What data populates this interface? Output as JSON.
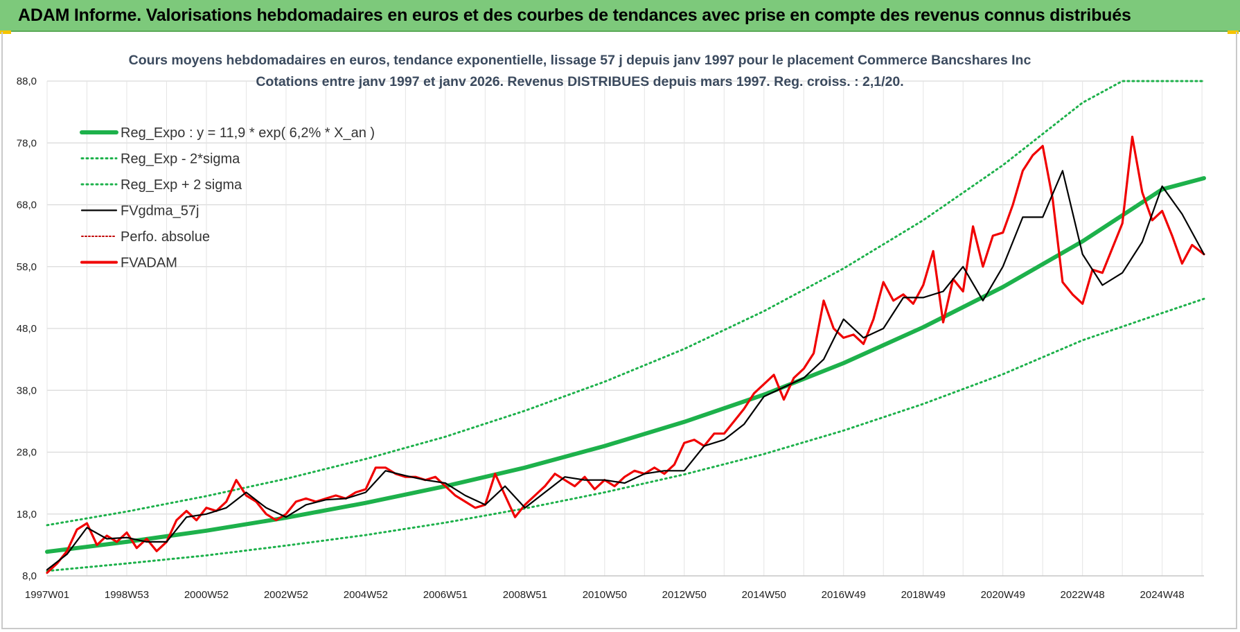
{
  "banner": {
    "title": "ADAM Informe. Valorisations hebdomadaires en euros et des courbes de tendances avec prise en compte des revenus connus distribués"
  },
  "colors": {
    "banner": "#7dc97b",
    "reg_expo": "#1db14b",
    "fv_gdma": "#000000",
    "fv_adam": "#f00000",
    "perfo": "#c00000"
  },
  "chart_data": {
    "type": "line",
    "title": "Cours moyens hebdomadaires en euros, tendance exponentielle, lissage 57 j depuis janv 1997  pour le placement Commerce Bancshares Inc",
    "subtitle": "Cotations entre janv 1997 et janv 2026. Revenus DISTRIBUES depuis mars 1997.  Reg. croiss. : 2,1/20.",
    "xlabel": "",
    "ylabel": "",
    "x_range": [
      1997.0,
      2026.05
    ],
    "ylim": [
      8.0,
      88.0
    ],
    "y_ticks": [
      8.0,
      18.0,
      28.0,
      38.0,
      48.0,
      58.0,
      68.0,
      78.0,
      88.0
    ],
    "y_tick_labels": [
      "8,0",
      "18,0",
      "28,0",
      "38,0",
      "48,0",
      "58,0",
      "68,0",
      "78,0",
      "88,0"
    ],
    "x_ticks": [
      {
        "label": "1997W01",
        "x": 1997.0
      },
      {
        "label": "1998W53",
        "x": 1999.0
      },
      {
        "label": "2000W52",
        "x": 2001.0
      },
      {
        "label": "2002W52",
        "x": 2003.0
      },
      {
        "label": "2004W52",
        "x": 2005.0
      },
      {
        "label": "2006W51",
        "x": 2007.0
      },
      {
        "label": "2008W51",
        "x": 2009.0
      },
      {
        "label": "2010W50",
        "x": 2011.0
      },
      {
        "label": "2012W50",
        "x": 2013.0
      },
      {
        "label": "2014W50",
        "x": 2015.0
      },
      {
        "label": "2016W49",
        "x": 2017.0
      },
      {
        "label": "2018W49",
        "x": 2019.0
      },
      {
        "label": "2020W49",
        "x": 2021.0
      },
      {
        "label": "2022W48",
        "x": 2023.0
      },
      {
        "label": "2024W48",
        "x": 2025.0
      }
    ],
    "grid": true,
    "legend_position": "top-left",
    "series": [
      {
        "name": "Reg_Expo : y = 11,9 * exp( 6,2% *  X_an )",
        "style": "solid-thick",
        "x": [
          1997.0,
          1999.0,
          2001.0,
          2003.0,
          2005.0,
          2007.0,
          2009.0,
          2011.0,
          2013.0,
          2015.0,
          2017.0,
          2019.0,
          2021.0,
          2023.0,
          2025.0,
          2026.05
        ],
        "y": [
          11.9,
          13.5,
          15.3,
          17.4,
          19.8,
          22.5,
          25.5,
          29.0,
          32.9,
          37.3,
          42.4,
          48.2,
          54.7,
          62.1,
          70.5,
          72.3
        ]
      },
      {
        "name": "Reg_Exp - 2*sigma",
        "style": "dotted",
        "x": [
          1997.0,
          1999.0,
          2001.0,
          2003.0,
          2005.0,
          2007.0,
          2009.0,
          2011.0,
          2013.0,
          2015.0,
          2017.0,
          2019.0,
          2021.0,
          2023.0,
          2025.0,
          2026.05
        ],
        "y": [
          8.8,
          10.0,
          11.3,
          12.9,
          14.6,
          16.6,
          18.9,
          21.5,
          24.4,
          27.7,
          31.5,
          35.8,
          40.6,
          46.1,
          50.5,
          52.8
        ]
      },
      {
        "name": "Reg_Exp + 2 sigma",
        "style": "dotted",
        "x": [
          1997.0,
          1999.0,
          2001.0,
          2003.0,
          2005.0,
          2007.0,
          2009.0,
          2011.0,
          2013.0,
          2015.0,
          2017.0,
          2019.0,
          2021.0,
          2023.0,
          2024.0,
          2026.05
        ],
        "y": [
          16.2,
          18.4,
          20.9,
          23.7,
          26.9,
          30.5,
          34.7,
          39.4,
          44.7,
          50.8,
          57.7,
          65.5,
          74.4,
          84.5,
          88.0,
          88.0
        ]
      },
      {
        "name": "FVgdma_57j",
        "style": "solid",
        "x": [
          1997.0,
          1997.5,
          1998.0,
          1998.5,
          1999.0,
          1999.5,
          2000.0,
          2000.5,
          2001.0,
          2001.5,
          2002.0,
          2002.5,
          2003.0,
          2003.5,
          2004.0,
          2004.5,
          2005.0,
          2005.5,
          2006.0,
          2006.5,
          2007.0,
          2007.5,
          2008.0,
          2008.5,
          2009.0,
          2009.5,
          2010.0,
          2010.5,
          2011.0,
          2011.5,
          2012.0,
          2012.5,
          2013.0,
          2013.5,
          2014.0,
          2014.5,
          2015.0,
          2015.5,
          2016.0,
          2016.5,
          2017.0,
          2017.5,
          2018.0,
          2018.5,
          2019.0,
          2019.5,
          2020.0,
          2020.5,
          2021.0,
          2021.5,
          2022.0,
          2022.5,
          2023.0,
          2023.5,
          2024.0,
          2024.5,
          2025.0,
          2025.5,
          2026.05
        ],
        "y": [
          9.0,
          11.5,
          15.8,
          14.0,
          14.2,
          13.5,
          13.5,
          17.5,
          18.0,
          19.0,
          21.5,
          19.0,
          17.5,
          19.5,
          20.3,
          20.5,
          21.5,
          25.0,
          24.2,
          23.5,
          23.0,
          21.0,
          19.5,
          22.5,
          19.0,
          21.5,
          24.0,
          23.5,
          23.5,
          23.0,
          24.5,
          25.0,
          25.0,
          29.0,
          30.0,
          32.5,
          37.0,
          38.5,
          40.0,
          43.0,
          49.5,
          46.5,
          48.0,
          53.0,
          53.0,
          54.0,
          58.0,
          52.5,
          58.0,
          66.0,
          66.0,
          73.5,
          60.0,
          55.0,
          57.0,
          62.0,
          71.0,
          66.5,
          60.0
        ]
      },
      {
        "name": "Perfo. absolue",
        "style": "dotted",
        "x": [],
        "y": []
      },
      {
        "name": "FVADAM",
        "style": "solid-thick",
        "x": [
          1997.0,
          1997.25,
          1997.5,
          1997.75,
          1998.0,
          1998.25,
          1998.5,
          1998.75,
          1999.0,
          1999.25,
          1999.5,
          1999.75,
          2000.0,
          2000.25,
          2000.5,
          2000.75,
          2001.0,
          2001.25,
          2001.5,
          2001.75,
          2002.0,
          2002.25,
          2002.5,
          2002.75,
          2003.0,
          2003.25,
          2003.5,
          2003.75,
          2004.0,
          2004.25,
          2004.5,
          2004.75,
          2005.0,
          2005.25,
          2005.5,
          2005.75,
          2006.0,
          2006.25,
          2006.5,
          2006.75,
          2007.0,
          2007.25,
          2007.5,
          2007.75,
          2008.0,
          2008.25,
          2008.5,
          2008.75,
          2009.0,
          2009.25,
          2009.5,
          2009.75,
          2010.0,
          2010.25,
          2010.5,
          2010.75,
          2011.0,
          2011.25,
          2011.5,
          2011.75,
          2012.0,
          2012.25,
          2012.5,
          2012.75,
          2013.0,
          2013.25,
          2013.5,
          2013.75,
          2014.0,
          2014.25,
          2014.5,
          2014.75,
          2015.0,
          2015.25,
          2015.5,
          2015.75,
          2016.0,
          2016.25,
          2016.5,
          2016.75,
          2017.0,
          2017.25,
          2017.5,
          2017.75,
          2018.0,
          2018.25,
          2018.5,
          2018.75,
          2019.0,
          2019.25,
          2019.5,
          2019.75,
          2020.0,
          2020.25,
          2020.5,
          2020.75,
          2021.0,
          2021.25,
          2021.5,
          2021.75,
          2022.0,
          2022.25,
          2022.5,
          2022.75,
          2023.0,
          2023.25,
          2023.5,
          2023.75,
          2024.0,
          2024.25,
          2024.5,
          2024.75,
          2025.0,
          2025.25,
          2025.5,
          2025.75,
          2026.05
        ],
        "y": [
          8.5,
          10.0,
          12.0,
          15.5,
          16.5,
          13.0,
          14.5,
          13.5,
          15.0,
          12.5,
          14.0,
          12.0,
          13.5,
          17.0,
          18.5,
          17.0,
          19.0,
          18.5,
          20.0,
          23.5,
          21.0,
          20.0,
          18.0,
          17.0,
          18.0,
          20.0,
          20.5,
          20.0,
          20.5,
          21.0,
          20.5,
          21.5,
          22.0,
          25.5,
          25.5,
          24.5,
          24.0,
          24.0,
          23.5,
          24.0,
          22.5,
          21.0,
          20.0,
          19.0,
          19.5,
          24.5,
          21.0,
          17.5,
          19.5,
          21.0,
          22.5,
          24.5,
          23.5,
          22.5,
          24.0,
          22.0,
          23.5,
          22.5,
          24.0,
          25.0,
          24.5,
          25.5,
          24.5,
          26.0,
          29.5,
          30.0,
          29.0,
          31.0,
          31.0,
          33.0,
          35.0,
          37.5,
          39.0,
          40.5,
          36.5,
          40.0,
          41.5,
          44.0,
          52.5,
          48.0,
          46.5,
          47.0,
          45.5,
          49.5,
          55.5,
          52.5,
          53.5,
          52.0,
          55.0,
          60.5,
          49.0,
          56.0,
          54.0,
          64.5,
          58.0,
          63.0,
          63.5,
          68.0,
          73.5,
          76.0,
          77.5,
          69.0,
          55.5,
          53.5,
          52.0,
          57.5,
          57.0,
          61.0,
          65.0,
          79.0,
          70.0,
          65.5,
          67.0,
          63.0,
          58.5,
          61.5,
          60.0
        ]
      }
    ]
  }
}
